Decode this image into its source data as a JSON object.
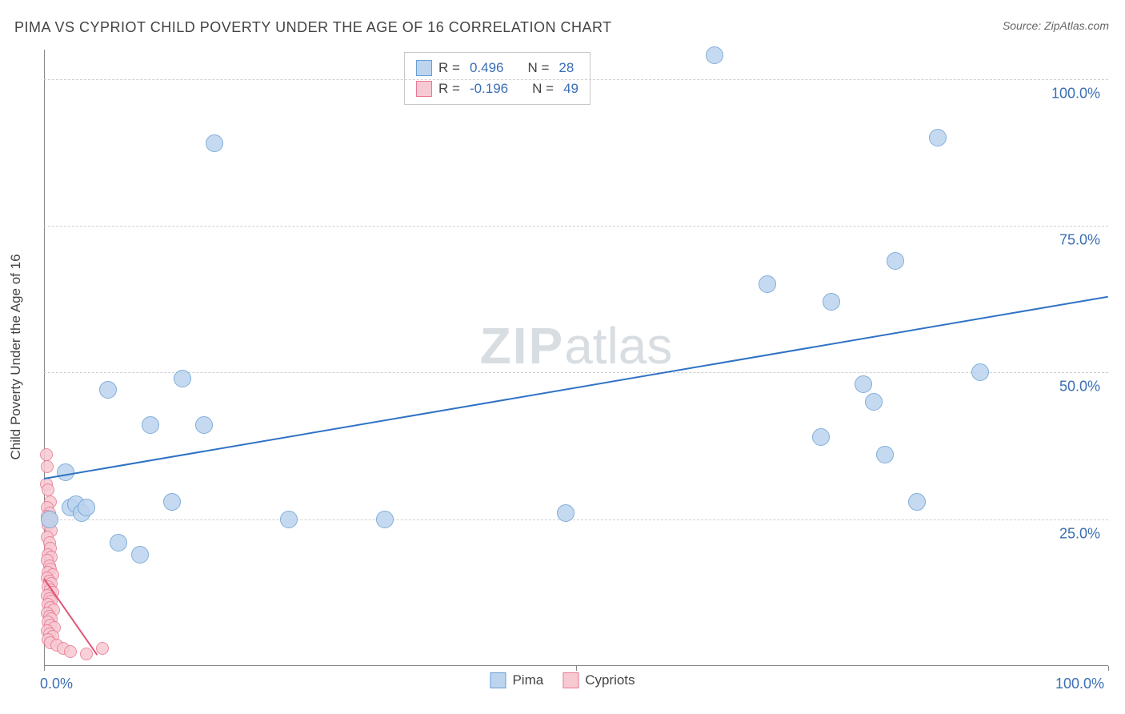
{
  "title": "PIMA VS CYPRIOT CHILD POVERTY UNDER THE AGE OF 16 CORRELATION CHART",
  "source": "Source: ZipAtlas.com",
  "ylabel": "Child Poverty Under the Age of 16",
  "watermark_zip": "ZIP",
  "watermark_atlas": "atlas",
  "chart": {
    "type": "scatter",
    "xlim": [
      0,
      100
    ],
    "ylim": [
      0,
      105
    ],
    "y_gridlines": [
      25,
      50,
      75,
      100
    ],
    "x_ticks": [
      0,
      50,
      100
    ],
    "y_tick_labels": [
      "25.0%",
      "50.0%",
      "75.0%",
      "100.0%"
    ],
    "x_tick_labels": [
      "0.0%",
      "",
      "100.0%"
    ],
    "grid_color": "#d0d0d0",
    "axis_color": "#888888",
    "background_color": "#ffffff",
    "label_color": "#3b6fb5"
  },
  "series": {
    "pima": {
      "label": "Pima",
      "color_fill": "#bcd4ee",
      "color_stroke": "#6a9fd4",
      "trend_color": "#2f72c4",
      "marker_radius": 11,
      "R": "0.496",
      "N": "28",
      "trend": {
        "x1": 0,
        "y1": 32,
        "x2": 100,
        "y2": 63
      },
      "points": [
        [
          0.5,
          25
        ],
        [
          2,
          33
        ],
        [
          2.5,
          27
        ],
        [
          3,
          27.5
        ],
        [
          3.5,
          26
        ],
        [
          4,
          27
        ],
        [
          6,
          47
        ],
        [
          7,
          21
        ],
        [
          9,
          19
        ],
        [
          10,
          41
        ],
        [
          12,
          28
        ],
        [
          13,
          49
        ],
        [
          15,
          41
        ],
        [
          23,
          25
        ],
        [
          16,
          89
        ],
        [
          32,
          25
        ],
        [
          49,
          26
        ],
        [
          63,
          104
        ],
        [
          68,
          65
        ],
        [
          73,
          39
        ],
        [
          74,
          62
        ],
        [
          77,
          48
        ],
        [
          78,
          45
        ],
        [
          79,
          36
        ],
        [
          80,
          69
        ],
        [
          82,
          28
        ],
        [
          84,
          90
        ],
        [
          88,
          50
        ]
      ]
    },
    "cypriots": {
      "label": "Cypriots",
      "color_fill": "#f7c9d2",
      "color_stroke": "#e77a94",
      "trend_color": "#e05577",
      "marker_radius": 8,
      "R": "-0.196",
      "N": "49",
      "trend": {
        "x1": 0,
        "y1": 15,
        "x2": 5,
        "y2": 2
      },
      "points": [
        [
          0.2,
          36
        ],
        [
          0.3,
          34
        ],
        [
          0.2,
          31
        ],
        [
          0.4,
          30
        ],
        [
          0.6,
          28
        ],
        [
          0.3,
          27
        ],
        [
          0.5,
          26
        ],
        [
          0.3,
          25.5
        ],
        [
          0.6,
          25
        ],
        [
          0.4,
          24
        ],
        [
          0.7,
          23
        ],
        [
          0.3,
          22
        ],
        [
          0.5,
          21
        ],
        [
          0.6,
          20
        ],
        [
          0.4,
          19
        ],
        [
          0.7,
          18.5
        ],
        [
          0.3,
          18
        ],
        [
          0.5,
          17
        ],
        [
          0.6,
          16.5
        ],
        [
          0.4,
          16
        ],
        [
          0.8,
          15.5
        ],
        [
          0.3,
          15
        ],
        [
          0.5,
          14.5
        ],
        [
          0.7,
          14
        ],
        [
          0.4,
          13.5
        ],
        [
          0.6,
          13
        ],
        [
          0.8,
          12.5
        ],
        [
          0.3,
          12
        ],
        [
          0.5,
          11.5
        ],
        [
          0.7,
          11
        ],
        [
          0.4,
          10.5
        ],
        [
          0.6,
          10
        ],
        [
          0.9,
          9.5
        ],
        [
          0.3,
          9
        ],
        [
          0.5,
          8.5
        ],
        [
          0.7,
          8
        ],
        [
          0.4,
          7.5
        ],
        [
          0.6,
          7
        ],
        [
          1.0,
          6.5
        ],
        [
          0.3,
          6
        ],
        [
          0.5,
          5.5
        ],
        [
          0.8,
          5
        ],
        [
          0.4,
          4.5
        ],
        [
          0.6,
          4
        ],
        [
          1.2,
          3.5
        ],
        [
          1.8,
          3
        ],
        [
          2.5,
          2.5
        ],
        [
          4,
          2
        ],
        [
          5.5,
          3
        ]
      ]
    }
  },
  "legend_top": {
    "r_label": "R =",
    "n_label": "N ="
  }
}
